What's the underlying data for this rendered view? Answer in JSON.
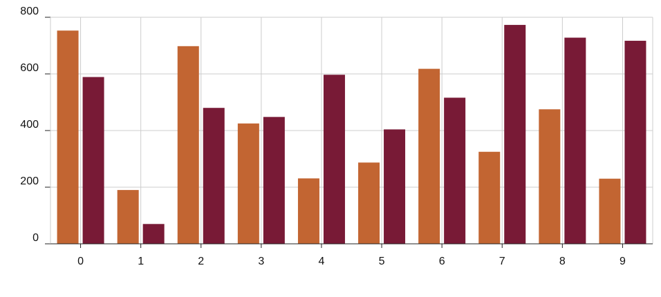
{
  "chart_data": {
    "type": "bar",
    "title": "",
    "xlabel": "",
    "ylabel": "",
    "categories": [
      "0",
      "1",
      "2",
      "3",
      "4",
      "5",
      "6",
      "7",
      "8",
      "9"
    ],
    "series": [
      {
        "color": "#c26532",
        "values": [
          753,
          190,
          698,
          425,
          231,
          287,
          618,
          325,
          475,
          230
        ]
      },
      {
        "color": "#781a36",
        "values": [
          589,
          70,
          480,
          448,
          597,
          404,
          516,
          773,
          728,
          717
        ]
      }
    ],
    "ylim": [
      0,
      800
    ],
    "yticks": [
      0,
      200,
      400,
      600,
      800
    ],
    "grid": true,
    "legend": "none"
  }
}
